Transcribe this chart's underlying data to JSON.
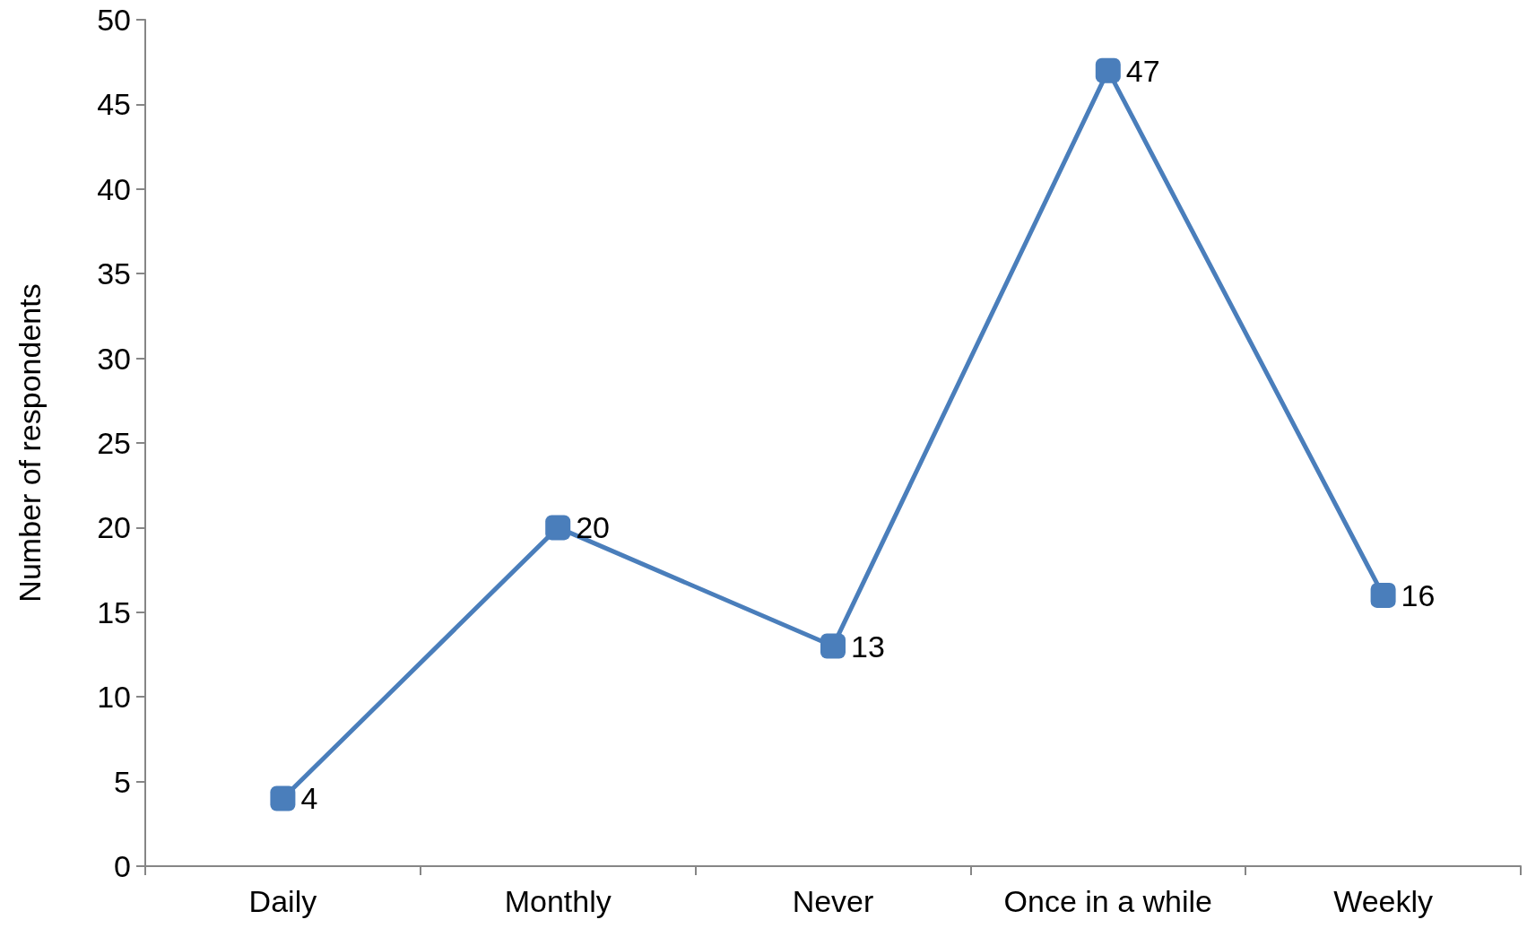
{
  "chart_data": {
    "type": "line",
    "ylabel": "Number of respondents",
    "categories": [
      "Daily",
      "Monthly",
      "Never",
      "Once in a while",
      "Weekly"
    ],
    "series": [
      {
        "color": "#4a7ebb",
        "values": [
          4,
          20,
          13,
          47,
          16
        ]
      }
    ],
    "ylim": [
      0,
      50
    ],
    "yticks": [
      0,
      5,
      10,
      15,
      20,
      25,
      30,
      35,
      40,
      45,
      50
    ],
    "grid": false,
    "marker": "square",
    "line_style": "solid",
    "data_labels": true
  }
}
